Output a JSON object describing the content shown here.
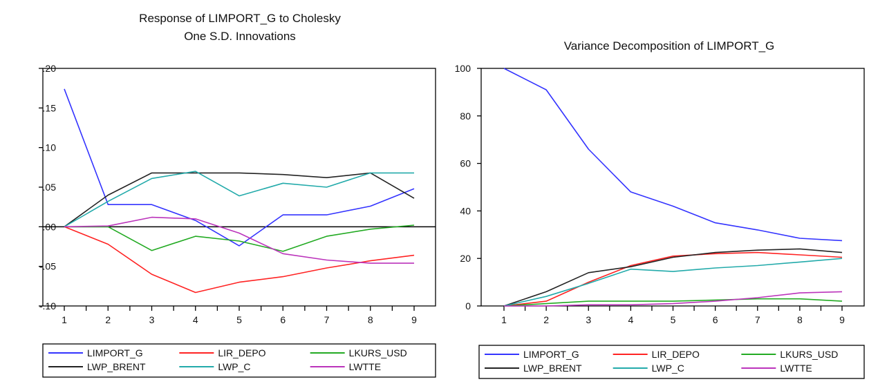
{
  "chart_data": [
    {
      "type": "line",
      "title": "Response of LIMPORT_G to Cholesky",
      "subtitle": "One S.D. Innovations",
      "xlabel": "",
      "ylabel": "",
      "x": [
        1,
        2,
        3,
        4,
        5,
        6,
        7,
        8,
        9
      ],
      "ylim": [
        -0.1,
        0.2
      ],
      "yticks": [
        ".20",
        ".15",
        ".10",
        ".05",
        ".00",
        "-.05",
        "-.10"
      ],
      "zero_line": true,
      "grid": false,
      "legend_position": "bottom",
      "series": [
        {
          "name": "LIMPORT_G",
          "color": "#3333ff",
          "values": [
            0.174,
            0.028,
            0.028,
            0.008,
            -0.024,
            0.015,
            0.015,
            0.026,
            0.048
          ]
        },
        {
          "name": "LIR_DEPO",
          "color": "#ff2222",
          "values": [
            0.0,
            -0.022,
            -0.06,
            -0.083,
            -0.07,
            -0.063,
            -0.052,
            -0.043,
            -0.036
          ]
        },
        {
          "name": "LKURS_USD",
          "color": "#22aa22",
          "values": [
            0.0,
            0.0,
            -0.03,
            -0.012,
            -0.018,
            -0.031,
            -0.012,
            -0.003,
            0.002
          ]
        },
        {
          "name": "LWP_BRENT",
          "color": "#222222",
          "values": [
            0.0,
            0.04,
            0.068,
            0.068,
            0.068,
            0.066,
            0.062,
            0.068,
            0.036
          ]
        },
        {
          "name": "LWP_C",
          "color": "#22aaaa",
          "values": [
            0.0,
            0.032,
            0.061,
            0.07,
            0.039,
            0.055,
            0.05,
            0.068,
            0.068
          ]
        },
        {
          "name": "LWTTE",
          "color": "#bb33bb",
          "values": [
            0.0,
            0.001,
            0.012,
            0.01,
            -0.008,
            -0.034,
            -0.042,
            -0.046,
            -0.046
          ]
        }
      ]
    },
    {
      "type": "line",
      "title": "Variance Decomposition of LIMPORT_G",
      "xlabel": "",
      "ylabel": "",
      "x": [
        1,
        2,
        3,
        4,
        5,
        6,
        7,
        8,
        9
      ],
      "ylim": [
        0,
        100
      ],
      "yticks": [
        "100",
        "80",
        "60",
        "40",
        "20",
        "0"
      ],
      "grid": false,
      "legend_position": "bottom",
      "series": [
        {
          "name": "LIMPORT_G",
          "color": "#3333ff",
          "values": [
            100,
            91,
            66,
            48,
            42,
            35,
            32,
            28.5,
            27.5
          ]
        },
        {
          "name": "LIR_DEPO",
          "color": "#ff2222",
          "values": [
            0,
            2,
            10,
            17,
            21,
            22,
            22.5,
            21.5,
            20.5
          ]
        },
        {
          "name": "LKURS_USD",
          "color": "#22aa22",
          "values": [
            0,
            1,
            2,
            2,
            2,
            2.5,
            3,
            3,
            2
          ]
        },
        {
          "name": "LWP_BRENT",
          "color": "#222222",
          "values": [
            0,
            6,
            14,
            16.5,
            20.5,
            22.5,
            23.5,
            24,
            22.5
          ]
        },
        {
          "name": "LWP_C",
          "color": "#22aaaa",
          "values": [
            0,
            4,
            9.5,
            15.5,
            14.5,
            16,
            17,
            18.5,
            20
          ]
        },
        {
          "name": "LWTTE",
          "color": "#bb33bb",
          "values": [
            0,
            0,
            0.5,
            0.5,
            1,
            2,
            3.5,
            5.5,
            6
          ]
        }
      ]
    }
  ]
}
